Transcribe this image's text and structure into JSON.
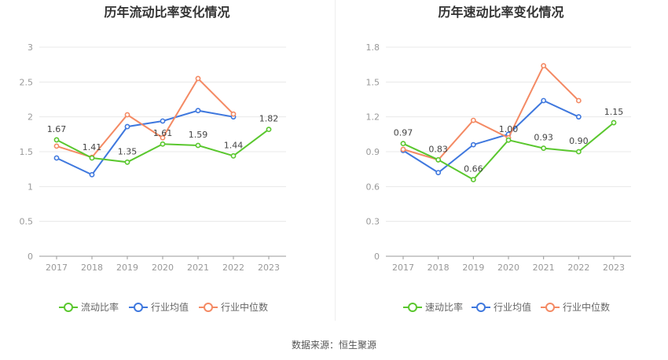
{
  "source_text": "数据来源：恒生聚源",
  "chart_data": [
    {
      "type": "line",
      "title": "历年流动比率变化情况",
      "categories": [
        "2017",
        "2018",
        "2019",
        "2020",
        "2021",
        "2022",
        "2023"
      ],
      "ylim": [
        0,
        3
      ],
      "yticks": [
        0,
        0.5,
        1,
        1.5,
        2,
        2.5,
        3
      ],
      "ytick_labels": [
        "0",
        "0.5",
        "1",
        "1.5",
        "2",
        "2.5",
        "3"
      ],
      "series": [
        {
          "name": "流动比率",
          "color": "#5ac72e",
          "values": [
            1.67,
            1.41,
            1.35,
            1.61,
            1.59,
            1.44,
            1.82
          ],
          "labels": [
            "1.67",
            "1.41",
            "1.35",
            "1.61",
            "1.59",
            "1.44",
            "1.82"
          ]
        },
        {
          "name": "行业均值",
          "color": "#3f78de",
          "values": [
            1.41,
            1.17,
            1.86,
            1.94,
            2.09,
            2.0,
            null
          ]
        },
        {
          "name": "行业中位数",
          "color": "#f48a64",
          "values": [
            1.58,
            1.42,
            2.03,
            1.7,
            2.55,
            2.04,
            null
          ]
        }
      ]
    },
    {
      "type": "line",
      "title": "历年速动比率变化情况",
      "categories": [
        "2017",
        "2018",
        "2019",
        "2020",
        "2021",
        "2022",
        "2023"
      ],
      "ylim": [
        0,
        1.8
      ],
      "yticks": [
        0,
        0.3,
        0.6,
        0.9,
        1.2,
        1.5,
        1.8
      ],
      "ytick_labels": [
        "0",
        "0.3",
        "0.6",
        "0.9",
        "1.2",
        "1.5",
        "1.8"
      ],
      "series": [
        {
          "name": "速动比率",
          "color": "#5ac72e",
          "values": [
            0.97,
            0.83,
            0.66,
            1.0,
            0.93,
            0.9,
            1.15
          ],
          "labels": [
            "0.97",
            "0.83",
            "0.66",
            "1.00",
            "0.93",
            "0.90",
            "1.15"
          ]
        },
        {
          "name": "行业均值",
          "color": "#3f78de",
          "values": [
            0.91,
            0.72,
            0.96,
            1.05,
            1.34,
            1.2,
            null
          ]
        },
        {
          "name": "行业中位数",
          "color": "#f48a64",
          "values": [
            0.92,
            0.83,
            1.17,
            1.02,
            1.64,
            1.34,
            null
          ]
        }
      ]
    }
  ]
}
